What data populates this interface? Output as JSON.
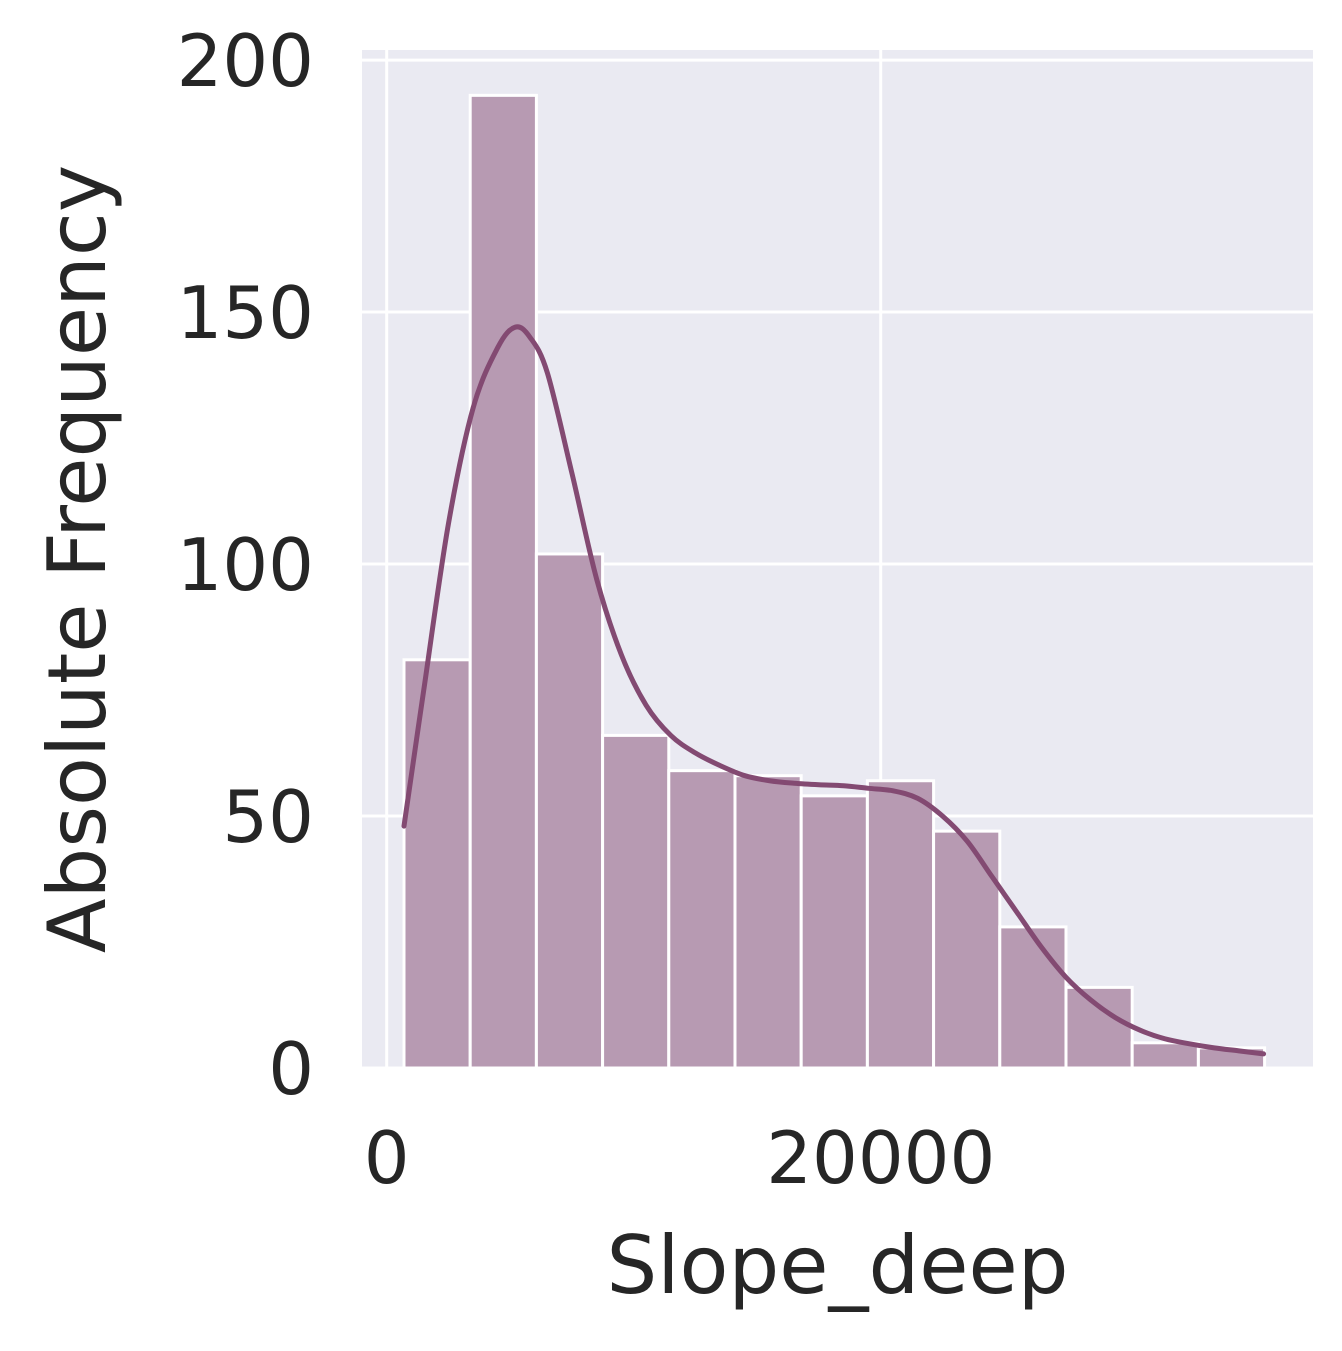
{
  "chart_data": {
    "type": "bar",
    "title": "",
    "xlabel": "Slope_deep",
    "ylabel": "Absolute Frequency",
    "xlim": [
      -1000,
      37500
    ],
    "ylim": [
      0,
      202
    ],
    "x_ticks": [
      0,
      20000
    ],
    "x_tick_labels": [
      "0",
      "20000"
    ],
    "y_ticks": [
      0,
      50,
      100,
      150,
      200
    ],
    "y_tick_labels": [
      "0",
      "50",
      "100",
      "150",
      "200"
    ],
    "grid": true,
    "bin_edges": [
      700,
      3380,
      6060,
      8740,
      11420,
      14100,
      16780,
      19460,
      22140,
      24820,
      27500,
      30180,
      32860,
      35540
    ],
    "values": [
      81,
      193,
      102,
      66,
      59,
      58,
      54,
      57,
      47,
      28,
      16,
      5,
      4
    ],
    "kde": {
      "x": [
        700,
        1500,
        2500,
        3500,
        4500,
        5200,
        5800,
        6500,
        7500,
        8500,
        9500,
        10500,
        11500,
        12500,
        13500,
        14500,
        15500,
        16500,
        17500,
        18500,
        19500,
        20500,
        21500,
        22500,
        23500,
        24500,
        25500,
        26500,
        27500,
        28500,
        29500,
        30500,
        31500,
        32500,
        33500,
        34500,
        35500
      ],
      "y": [
        48,
        75,
        108,
        131,
        143,
        147,
        145,
        138,
        118,
        97,
        82,
        72,
        66,
        62.5,
        60,
        58,
        57,
        56.5,
        56.2,
        56,
        55.5,
        55,
        53.5,
        50,
        45,
        38,
        31,
        24,
        18,
        13.5,
        10,
        7.5,
        5.8,
        4.8,
        4,
        3.4,
        2.8
      ]
    },
    "colors": {
      "bar_fill": "#b79ab2",
      "bar_edge": "#ffffff",
      "kde_line": "#834a72",
      "plot_background": "#eaeaf2",
      "grid": "#ffffff",
      "text": "#262626"
    }
  }
}
